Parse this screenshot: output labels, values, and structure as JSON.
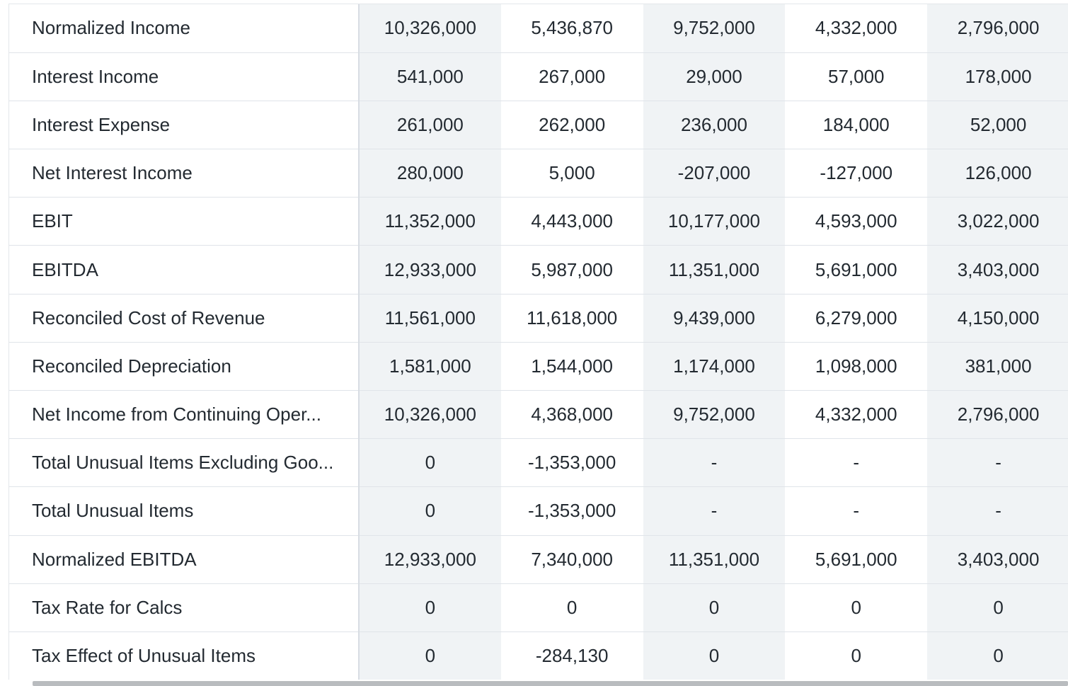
{
  "table": {
    "rows": [
      {
        "label": "Normalized Income",
        "values": [
          "10,326,000",
          "5,436,870",
          "9,752,000",
          "4,332,000",
          "2,796,000"
        ]
      },
      {
        "label": "Interest Income",
        "values": [
          "541,000",
          "267,000",
          "29,000",
          "57,000",
          "178,000"
        ]
      },
      {
        "label": "Interest Expense",
        "values": [
          "261,000",
          "262,000",
          "236,000",
          "184,000",
          "52,000"
        ]
      },
      {
        "label": "Net Interest Income",
        "values": [
          "280,000",
          "5,000",
          "-207,000",
          "-127,000",
          "126,000"
        ]
      },
      {
        "label": "EBIT",
        "values": [
          "11,352,000",
          "4,443,000",
          "10,177,000",
          "4,593,000",
          "3,022,000"
        ]
      },
      {
        "label": "EBITDA",
        "values": [
          "12,933,000",
          "5,987,000",
          "11,351,000",
          "5,691,000",
          "3,403,000"
        ]
      },
      {
        "label": "Reconciled Cost of Revenue",
        "values": [
          "11,561,000",
          "11,618,000",
          "9,439,000",
          "6,279,000",
          "4,150,000"
        ]
      },
      {
        "label": "Reconciled Depreciation",
        "values": [
          "1,581,000",
          "1,544,000",
          "1,174,000",
          "1,098,000",
          "381,000"
        ]
      },
      {
        "label": "Net Income from Continuing Oper...",
        "values": [
          "10,326,000",
          "4,368,000",
          "9,752,000",
          "4,332,000",
          "2,796,000"
        ]
      },
      {
        "label": "Total Unusual Items Excluding Goo...",
        "values": [
          "0",
          "-1,353,000",
          "-",
          "-",
          "-"
        ]
      },
      {
        "label": "Total Unusual Items",
        "values": [
          "0",
          "-1,353,000",
          "-",
          "-",
          "-"
        ]
      },
      {
        "label": "Normalized EBITDA",
        "values": [
          "12,933,000",
          "7,340,000",
          "11,351,000",
          "5,691,000",
          "3,403,000"
        ]
      },
      {
        "label": "Tax Rate for Calcs",
        "values": [
          "0",
          "0",
          "0",
          "0",
          "0"
        ]
      },
      {
        "label": "Tax Effect of Unusual Items",
        "values": [
          "0",
          "-284,130",
          "0",
          "0",
          "0"
        ]
      }
    ]
  }
}
